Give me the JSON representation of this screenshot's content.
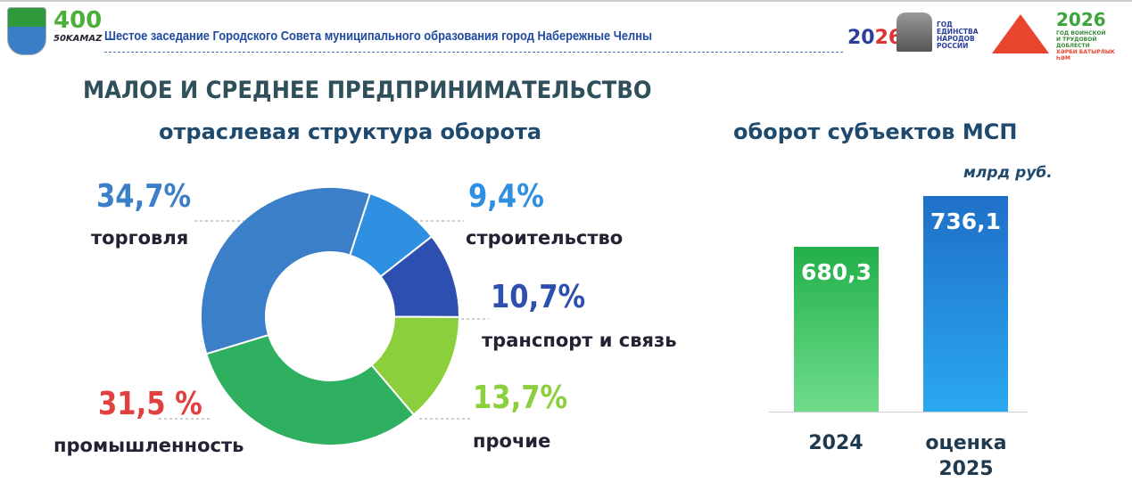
{
  "header": {
    "title": "Шестое заседание Городского Совета муниципального образования город Набережные Челны",
    "logo_left": "Coat of arms of Naberezhnye Chelny",
    "logo_400": "400 Набережные Челны · 50 КАМАЗ",
    "logo_unity": "2026 ГОД ЕДИНСТВА НАРОДОВ РОССИИ",
    "logo_valor": "2026 ГОД ВОИНСКОЙ И ТРУДОВОЙ ДОБЛЕСТИ"
  },
  "main_title": "МАЛОЕ И СРЕДНЕЕ ПРЕДПРИНИМАТЕЛЬСТВО",
  "chart_data": [
    {
      "type": "pie",
      "title": "отраслевая структура оборота",
      "donut": true,
      "slices": [
        {
          "label": "строительство",
          "value": 9.4,
          "display": "9,4%",
          "color": "#2f8fe0"
        },
        {
          "label": "транспорт и связь",
          "value": 10.7,
          "display": "10,7%",
          "color": "#2d4fb0"
        },
        {
          "label": "прочие",
          "value": 13.7,
          "display": "13,7%",
          "color": "#8ccf3c"
        },
        {
          "label": "промышленность",
          "value": 31.5,
          "display": "31,5 %",
          "color": "#2fb060"
        },
        {
          "label": "торговля",
          "value": 34.7,
          "display": "34,7%",
          "color": "#3b7fc8"
        }
      ]
    },
    {
      "type": "bar",
      "title": "оборот субъектов МСП",
      "unit": "млрд руб.",
      "categories": [
        "2024",
        "оценка 2025"
      ],
      "values": [
        680.3,
        736.1
      ],
      "display": [
        "680,3",
        "736,1"
      ],
      "colors": [
        "#22b04a",
        "#1f6fc8"
      ],
      "ylim": [
        500,
        750
      ]
    }
  ]
}
